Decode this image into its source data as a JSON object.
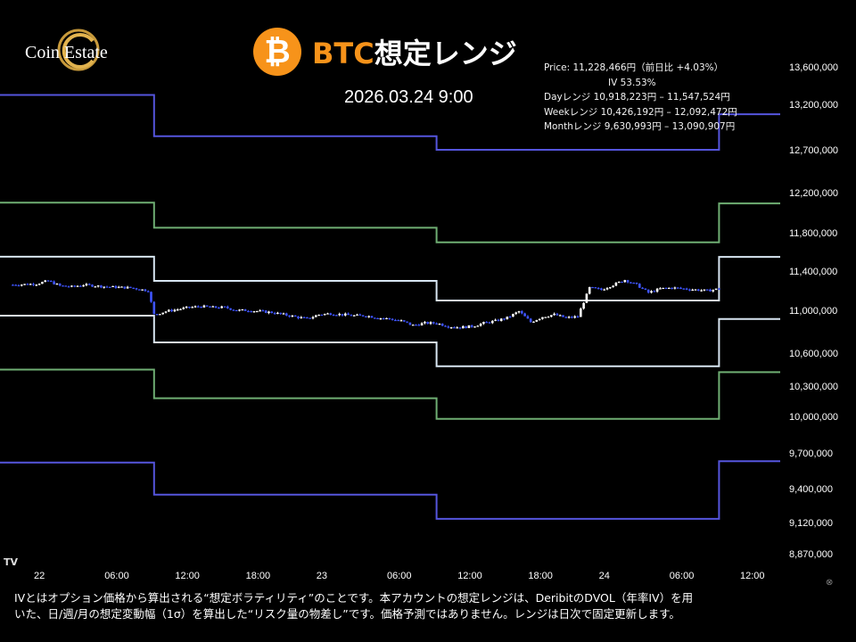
{
  "header": {
    "logo_text": "Coin Estate",
    "btc_symbol": "₿",
    "title_accent": "BTC",
    "title_rest": "想定レンジ",
    "datetime": "2026.03.24 9:00"
  },
  "info": {
    "price": "Price: 11,228,466円（前日比 +4.03%）",
    "iv": "IV 53.53%",
    "day_range": "Dayレンジ 10,918,223円 – 11,547,524円",
    "week_range": "Weekレンジ 10,426,192円 – 12,092,472円",
    "month_range": "Monthレンジ 9,630,993円 – 13,090,907円"
  },
  "footer": {
    "line1": "IVとはオプション価格から算出される“想定ボラティリティ”のことです。本アカウントの想定レンジは、DeribitのDVOL（年率IV）を用",
    "line2": "いた、日/週/月の想定変動幅（1σ）を算出した“リスク量の物差し”です。価格予測ではありません。レンジは日次で固定更新します。"
  },
  "colors": {
    "background": "#000000",
    "btc_orange": "#f7931a",
    "day_range": "#d8e6f2",
    "week_range": "#6fae73",
    "month_range": "#5555dd",
    "candle_up": "#ffffff",
    "candle_down": "#3f55ff"
  },
  "chart_data": {
    "type": "candlestick-with-ranges",
    "x_unit": "hours from 2026-03-22 00:00",
    "x_ticks": [
      {
        "x": 0,
        "label": "22"
      },
      {
        "x": 6,
        "label": "06:00"
      },
      {
        "x": 12,
        "label": "12:00"
      },
      {
        "x": 18,
        "label": "18:00"
      },
      {
        "x": 24,
        "label": "23"
      },
      {
        "x": 30,
        "label": "06:00"
      },
      {
        "x": 36,
        "label": "12:00"
      },
      {
        "x": 42,
        "label": "18:00"
      },
      {
        "x": 48,
        "label": "24"
      },
      {
        "x": 54,
        "label": "06:00"
      },
      {
        "x": 60,
        "label": "12:00"
      }
    ],
    "y_ticks": [
      {
        "value": 13600000,
        "label": "13,600,000"
      },
      {
        "value": 13200000,
        "label": "13,200,000"
      },
      {
        "value": 12700000,
        "label": "12,700,000"
      },
      {
        "value": 12200000,
        "label": "12,200,000"
      },
      {
        "value": 11800000,
        "label": "11,800,000"
      },
      {
        "value": 11400000,
        "label": "11,400,000"
      },
      {
        "value": 11000000,
        "label": "11,000,000"
      },
      {
        "value": 10600000,
        "label": "10,600,000"
      },
      {
        "value": 10300000,
        "label": "10,300,000"
      },
      {
        "value": 10000000,
        "label": "10,000,000"
      },
      {
        "value": 9700000,
        "label": "9,700,000"
      },
      {
        "value": 9400000,
        "label": "9,400,000"
      },
      {
        "value": 9120000,
        "label": "9,120,000"
      },
      {
        "value": 8870000,
        "label": "8,870,000"
      }
    ],
    "range_x_breaks": [
      -3,
      9,
      33,
      57,
      61
    ],
    "ranges": [
      {
        "name": "Month upper",
        "group": "month",
        "values": [
          13300000,
          12850000,
          12700000,
          13090907
        ]
      },
      {
        "name": "Week upper",
        "group": "week",
        "values": [
          12100000,
          11850000,
          11700000,
          12092472
        ]
      },
      {
        "name": "Day upper",
        "group": "day",
        "values": [
          11550000,
          11300000,
          11100000,
          11547524
        ]
      },
      {
        "name": "Day lower",
        "group": "day",
        "values": [
          10950000,
          10700000,
          10480000,
          10918223
        ]
      },
      {
        "name": "Week lower",
        "group": "week",
        "values": [
          10450000,
          10180000,
          9980000,
          10426192
        ]
      },
      {
        "name": "Month lower",
        "group": "month",
        "values": [
          9620000,
          9350000,
          9150000,
          9630993
        ]
      }
    ],
    "price": [
      [
        -3,
        11260000
      ],
      [
        -1,
        11270000
      ],
      [
        0,
        11300000
      ],
      [
        1,
        11250000
      ],
      [
        2,
        11240000
      ],
      [
        3,
        11260000
      ],
      [
        5,
        11240000
      ],
      [
        7,
        11230000
      ],
      [
        8.5,
        11200000
      ],
      [
        9,
        10960000
      ],
      [
        10,
        10990000
      ],
      [
        11,
        11010000
      ],
      [
        12,
        11030000
      ],
      [
        13,
        11040000
      ],
      [
        14,
        11030000
      ],
      [
        15,
        11030000
      ],
      [
        16,
        11000000
      ],
      [
        17,
        11000000
      ],
      [
        18,
        10990000
      ],
      [
        19,
        10980000
      ],
      [
        20,
        10960000
      ],
      [
        21,
        10940000
      ],
      [
        22,
        10920000
      ],
      [
        23,
        10960000
      ],
      [
        24,
        10970000
      ],
      [
        25,
        10960000
      ],
      [
        26,
        10950000
      ],
      [
        27,
        10950000
      ],
      [
        28,
        10930000
      ],
      [
        29,
        10920000
      ],
      [
        30,
        10900000
      ],
      [
        31,
        10860000
      ],
      [
        32,
        10880000
      ],
      [
        33,
        10880000
      ],
      [
        34,
        10850000
      ],
      [
        35,
        10840000
      ],
      [
        36,
        10850000
      ],
      [
        37,
        10880000
      ],
      [
        38,
        10900000
      ],
      [
        39,
        10930000
      ],
      [
        40,
        10990000
      ],
      [
        41,
        10890000
      ],
      [
        42,
        10940000
      ],
      [
        43,
        10960000
      ],
      [
        44,
        10930000
      ],
      [
        45,
        10940000
      ],
      [
        46,
        11230000
      ],
      [
        47,
        11210000
      ],
      [
        48,
        11260000
      ],
      [
        49,
        11310000
      ],
      [
        50,
        11260000
      ],
      [
        51,
        11180000
      ],
      [
        52,
        11220000
      ],
      [
        53,
        11230000
      ],
      [
        54,
        11220000
      ],
      [
        55,
        11210000
      ],
      [
        56,
        11200000
      ],
      [
        57,
        11220000
      ]
    ]
  }
}
